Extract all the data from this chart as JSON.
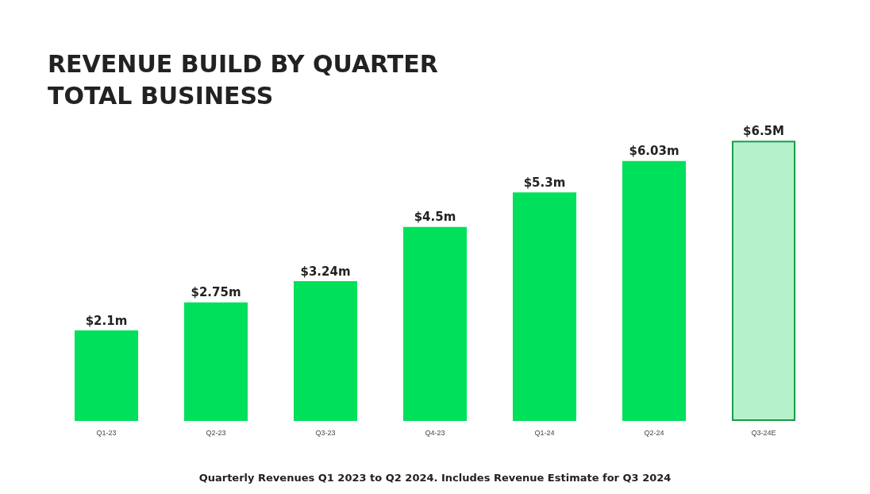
{
  "chart_data": {
    "type": "bar",
    "title": "REVENUE BUILD BY QUARTER",
    "subtitle": "TOTAL BUSINESS",
    "categories": [
      "Q1-23",
      "Q2-23",
      "Q3-23",
      "Q4-23",
      "Q1-24",
      "Q2-24",
      "Q3-24E"
    ],
    "values": [
      2.1,
      2.75,
      3.24,
      4.5,
      5.3,
      6.03,
      6.5
    ],
    "value_labels": [
      "$2.1m",
      "$2.75m",
      "$3.24m",
      "$4.5m",
      "$5.3m",
      "$6.03m",
      "$6.5M"
    ],
    "colors": [
      "#00e05a",
      "#00e05a",
      "#00e05a",
      "#00e05a",
      "#00e05a",
      "#00e05a",
      "#b5f2cc"
    ],
    "annotations": [
      "Quarterly Revenues Q1 2023 to Q2 2024. Includes Revenue Estimate for Q3 2024"
    ]
  }
}
